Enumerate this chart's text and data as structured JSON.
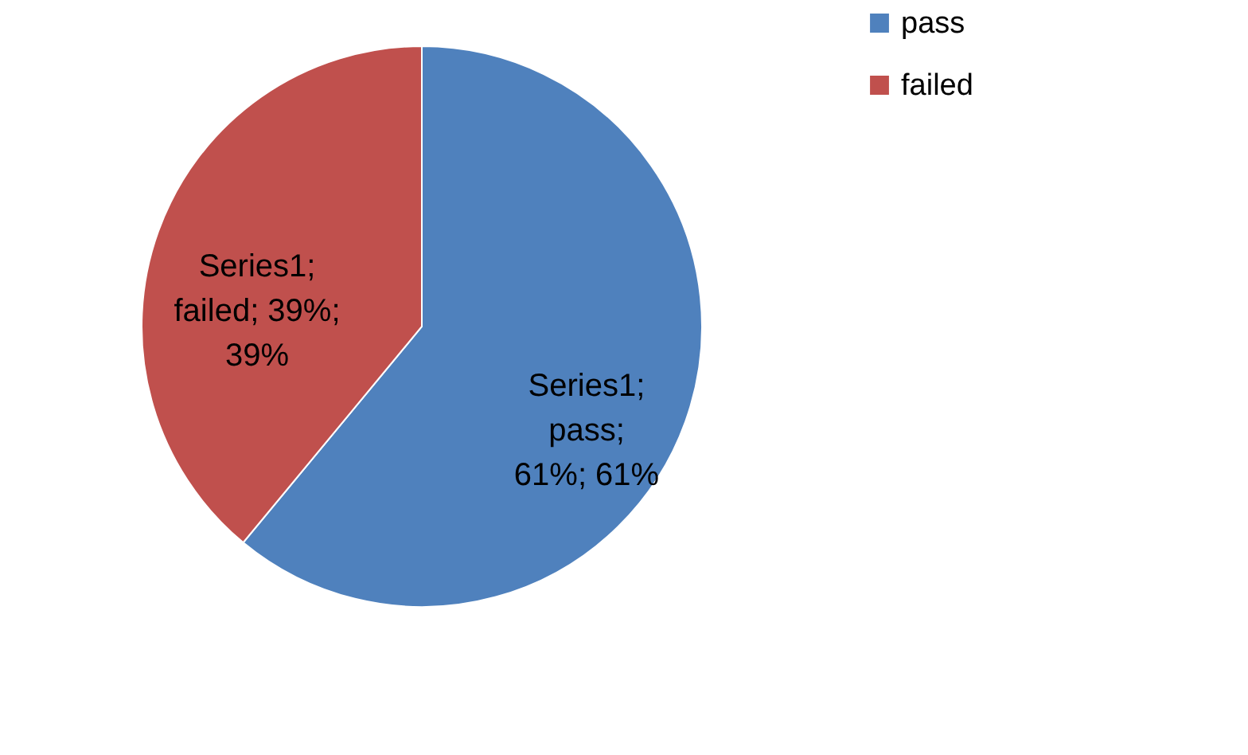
{
  "chart_data": {
    "type": "pie",
    "categories": [
      "pass",
      "failed"
    ],
    "values": [
      61,
      39
    ],
    "colors": [
      "#4f81bd",
      "#c0504d"
    ],
    "value_labels": [
      "Series1;\npass;\n61%; 61%",
      "Series1;\nfailed; 39%;\n39%"
    ],
    "legend": "right"
  }
}
